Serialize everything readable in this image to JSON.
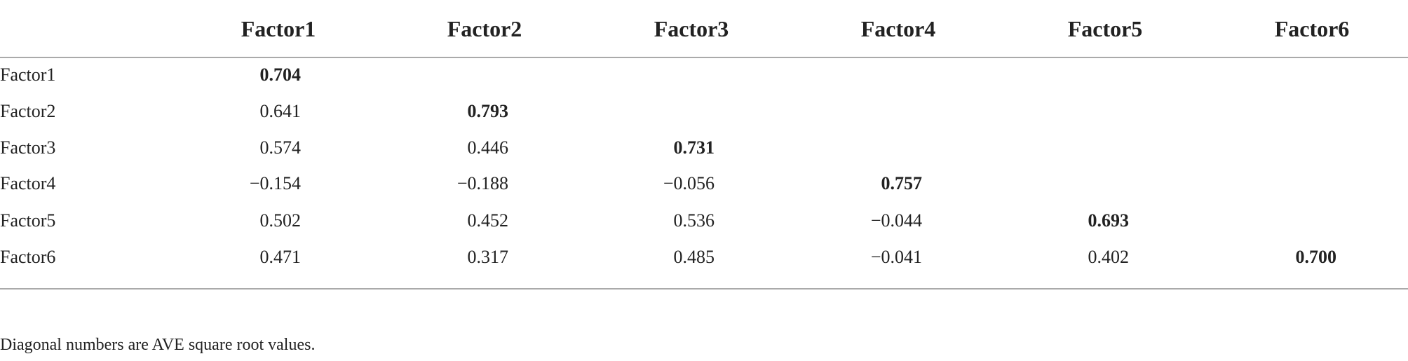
{
  "table": {
    "columns": [
      "Factor1",
      "Factor2",
      "Factor3",
      "Factor4",
      "Factor5",
      "Factor6"
    ],
    "rows": [
      {
        "label": "Factor1",
        "cells": [
          "0.704"
        ]
      },
      {
        "label": "Factor2",
        "cells": [
          "0.641",
          "0.793"
        ]
      },
      {
        "label": "Factor3",
        "cells": [
          "0.574",
          "0.446",
          "0.731"
        ]
      },
      {
        "label": "Factor4",
        "cells": [
          "−0.154",
          "−0.188",
          "−0.056",
          "0.757"
        ]
      },
      {
        "label": "Factor5",
        "cells": [
          "0.502",
          "0.452",
          "0.536",
          "−0.044",
          "0.693"
        ]
      },
      {
        "label": "Factor6",
        "cells": [
          "0.471",
          "0.317",
          "0.485",
          "−0.041",
          "0.402",
          "0.700"
        ]
      }
    ]
  },
  "footnote": "Diagonal numbers are AVE square root values."
}
